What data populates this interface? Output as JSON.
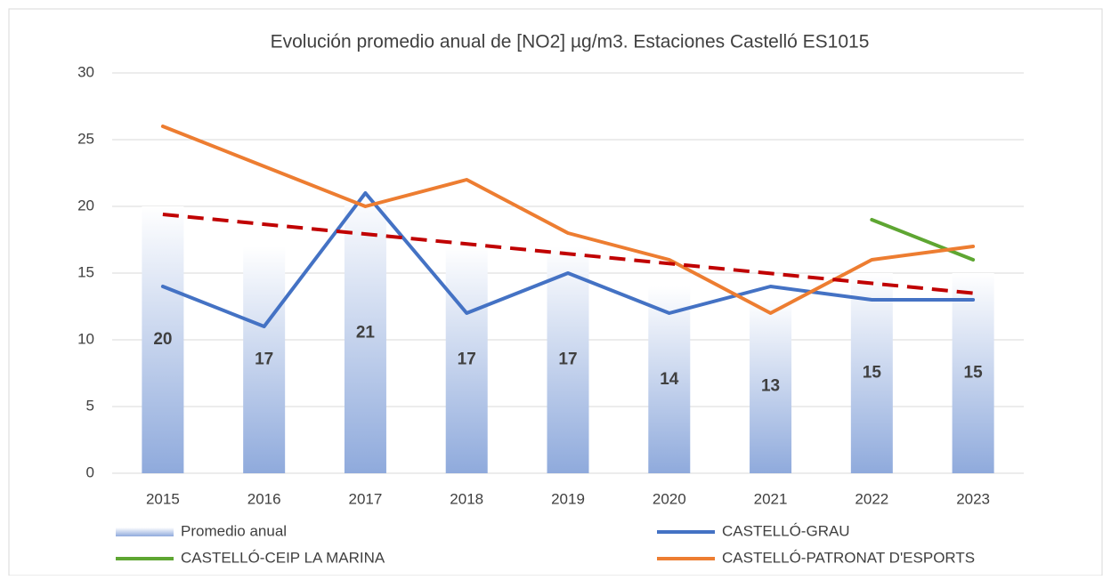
{
  "chart_data": {
    "type": "combo",
    "title": "Evolución promedio anual de [NO2] µg/m3. Estaciones Castelló ES1015",
    "categories": [
      "2015",
      "2016",
      "2017",
      "2018",
      "2019",
      "2020",
      "2021",
      "2022",
      "2023"
    ],
    "series": [
      {
        "name": "Promedio anual",
        "type": "bar",
        "color": "#8faadc",
        "values": [
          20,
          17,
          21,
          17,
          17,
          14,
          13,
          15,
          15
        ]
      },
      {
        "name": "CASTELLÓ-GRAU",
        "type": "line",
        "color": "#4472c4",
        "values": [
          14,
          11,
          21,
          12,
          15,
          12,
          14,
          13,
          13
        ]
      },
      {
        "name": "CASTELLÓ-CEIP LA MARINA",
        "type": "line",
        "color": "#5ea632",
        "values": [
          null,
          null,
          null,
          null,
          null,
          null,
          null,
          19,
          16
        ]
      },
      {
        "name": "CASTELLÓ-PATRONAT D'ESPORTS",
        "type": "line",
        "color": "#ed7d31",
        "values": [
          26,
          23,
          20,
          22,
          18,
          16,
          12,
          16,
          17
        ]
      }
    ],
    "trendline": {
      "color": "#c00000",
      "values": [
        19.4,
        13.5
      ]
    },
    "ylim": [
      0,
      30
    ],
    "yticks": [
      0,
      5,
      10,
      15,
      20,
      25,
      30
    ],
    "grid": true
  }
}
